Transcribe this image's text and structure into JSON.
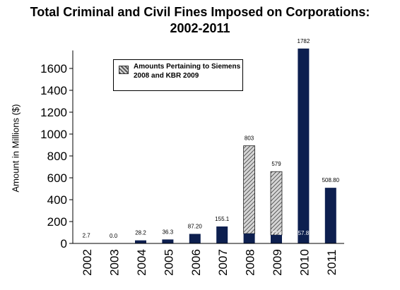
{
  "chart_data": {
    "type": "bar",
    "title_line1": "Total Criminal and Civil Fines Imposed on Corporations:",
    "title_line2": "2002-2011",
    "ylabel": "Amount in Millions ($)",
    "xlabel": "",
    "ylim": [
      0,
      1700
    ],
    "yticks": [
      0,
      200,
      400,
      600,
      800,
      1000,
      1200,
      1400,
      1600
    ],
    "categories": [
      "2002",
      "2003",
      "2004",
      "2005",
      "2006",
      "2007",
      "2008",
      "2009",
      "2010",
      "2011"
    ],
    "series": [
      {
        "values": [
          2.7,
          0.0,
          28.2,
          36.3,
          87.2,
          155.1,
          90,
          77.8,
          1782,
          508.8
        ],
        "color": "#0d1f4f"
      },
      {
        "name": "Amounts Pertaining to Siemens 2008 and KBR 2009",
        "values": [
          0,
          0,
          0,
          0,
          0,
          0,
          803,
          579,
          0,
          0
        ],
        "pattern": "hatched"
      }
    ],
    "top_labels": [
      "2.7",
      "0.0",
      "28.2",
      "36.3",
      "87.20",
      "155.1",
      "803",
      "579",
      "1782",
      "508.80"
    ],
    "inner_labels": [
      "",
      "",
      "",
      "",
      "",
      "",
      "",
      "77.8",
      "57.8",
      ""
    ],
    "legend": {
      "text": "Amounts Pertaining to Siemens 2008 and KBR 2009",
      "position": "top-left"
    },
    "grid": false
  }
}
